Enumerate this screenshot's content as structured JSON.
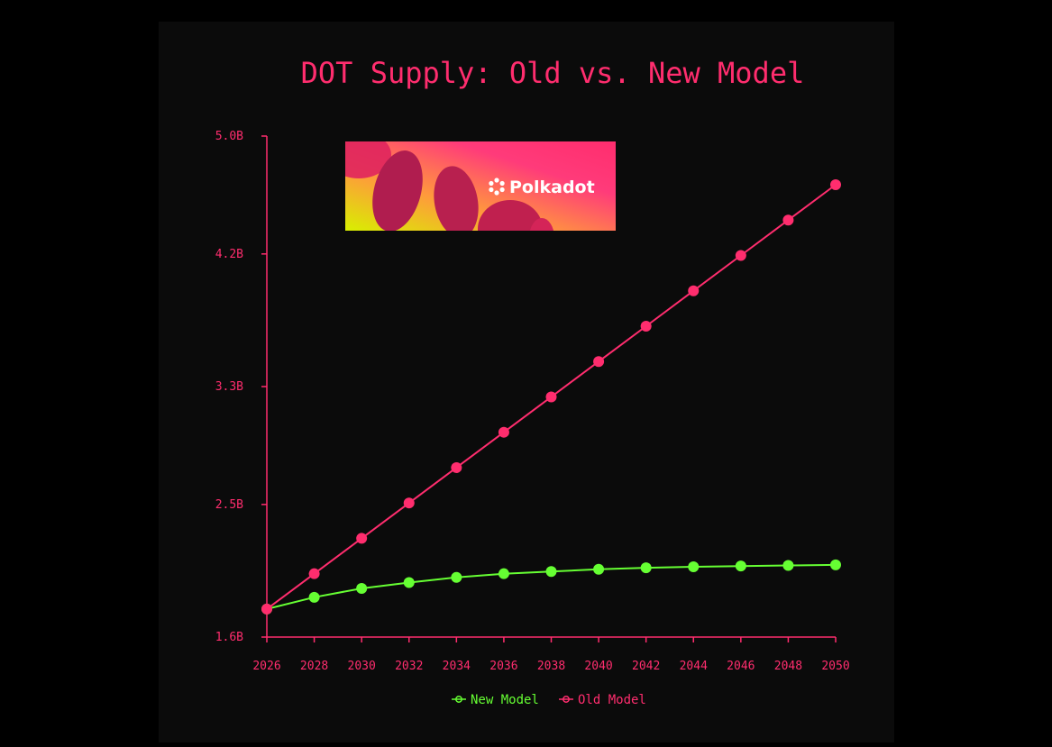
{
  "colors": {
    "background": "#000000",
    "panel": "#0b0b0b",
    "accent": "#ff2d6e",
    "new_model": "#66ff33",
    "old_model": "#ff2d6e"
  },
  "logo": {
    "text": "Polkadot",
    "icon": "polkadot-logo-icon"
  },
  "chart_data": {
    "type": "line",
    "title": "DOT Supply: Old vs. New Model",
    "xlabel": "",
    "ylabel": "",
    "x": [
      2026,
      2028,
      2030,
      2032,
      2034,
      2036,
      2038,
      2040,
      2042,
      2044,
      2046,
      2048,
      2050
    ],
    "x_tick_labels": [
      "2026",
      "2028",
      "2030",
      "2032",
      "2034",
      "2036",
      "2038",
      "2040",
      "2042",
      "2044",
      "2046",
      "2048",
      "2050"
    ],
    "ylim": [
      1.6,
      5.0
    ],
    "y_ticks": [
      1.6,
      2.5,
      3.3,
      4.2,
      5.0
    ],
    "y_tick_labels": [
      "1.6B",
      "2.5B",
      "3.3B",
      "4.2B",
      "5.0B"
    ],
    "grid": false,
    "legend_position": "bottom",
    "series": [
      {
        "name": "New Model",
        "color": "#66ff33",
        "values": [
          1.79,
          1.87,
          1.93,
          1.97,
          2.005,
          2.03,
          2.045,
          2.06,
          2.07,
          2.077,
          2.082,
          2.086,
          2.09
        ]
      },
      {
        "name": "Old Model",
        "color": "#ff2d6e",
        "values": [
          1.79,
          2.03,
          2.27,
          2.51,
          2.75,
          2.99,
          3.23,
          3.47,
          3.71,
          3.95,
          4.19,
          4.43,
          4.67
        ]
      }
    ]
  }
}
